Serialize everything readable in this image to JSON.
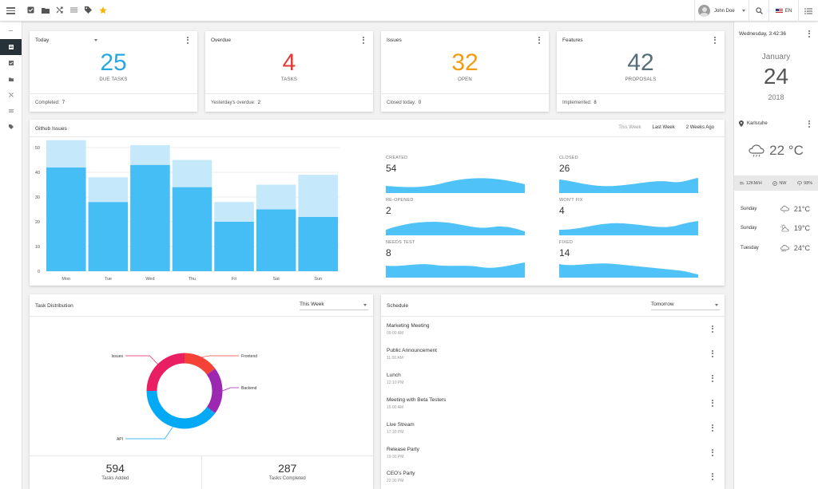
{
  "topbar": {
    "user_name": "John Doe",
    "lang": "EN"
  },
  "stats": [
    {
      "title": "Today",
      "value": "25",
      "label": "DUE TASKS",
      "color": "#29a8e0",
      "footer_label": "Completed:",
      "footer_value": "7",
      "has_dropdown": true
    },
    {
      "title": "Overdue",
      "value": "4",
      "label": "TASKS",
      "color": "#e53935",
      "footer_label": "Yesterday's overdue:",
      "footer_value": "2"
    },
    {
      "title": "Issues",
      "value": "32",
      "label": "OPEN",
      "color": "#f39c12",
      "footer_label": "Closed today:",
      "footer_value": "0"
    },
    {
      "title": "Features",
      "value": "42",
      "label": "PROPOSALS",
      "color": "#546e7a",
      "footer_label": "Implemented:",
      "footer_value": "8"
    }
  ],
  "github": {
    "title": "Github Issues",
    "tabs": [
      {
        "label": "This Week",
        "active": false
      },
      {
        "label": "Last Week",
        "active": true
      },
      {
        "label": "2 Weeks Ago",
        "active": true
      }
    ],
    "metrics": [
      {
        "label": "CREATED",
        "value": "54"
      },
      {
        "label": "CLOSED",
        "value": "26"
      },
      {
        "label": "RE-OPENED",
        "value": "2"
      },
      {
        "label": "WON'T FIX",
        "value": "4"
      },
      {
        "label": "NEEDS TEST",
        "value": "8"
      },
      {
        "label": "FIXED",
        "value": "14"
      }
    ]
  },
  "chart_data": {
    "type": "bar",
    "categories": [
      "Mon",
      "Tue",
      "Wed",
      "Thu",
      "Fri",
      "Sat",
      "Sun"
    ],
    "series": [
      {
        "values": [
          42,
          28,
          43,
          34,
          20,
          25,
          22
        ],
        "color": "#45bdf5"
      },
      {
        "values": [
          11,
          10,
          8,
          11,
          8,
          10,
          17
        ],
        "color": "#c5e9fb"
      }
    ],
    "stacked": true,
    "ylim": [
      0,
      50
    ],
    "yticks": [
      0,
      10,
      20,
      30,
      40,
      50
    ],
    "grid": true
  },
  "task_distribution": {
    "title": "Task Distribution",
    "period": "This Week",
    "segments": [
      {
        "label": "Frontend",
        "value": 15,
        "color": "#f44336"
      },
      {
        "label": "Backend",
        "value": 20,
        "color": "#9c27b0"
      },
      {
        "label": "API",
        "value": 40,
        "color": "#03a9f4"
      },
      {
        "label": "Issues",
        "value": 25,
        "color": "#e91e63"
      }
    ],
    "tasks_added_value": "594",
    "tasks_added_label": "Tasks Added",
    "tasks_completed_value": "287",
    "tasks_completed_label": "Tasks Completed"
  },
  "schedule": {
    "title": "Schedule",
    "period": "Tomorrow",
    "items": [
      {
        "title": "Marketing Meeting",
        "time": "09:00 AM"
      },
      {
        "title": "Public Announcement",
        "time": "11:00 AM"
      },
      {
        "title": "Lunch",
        "time": "12:10 PM"
      },
      {
        "title": "Meeting with Beta Testers",
        "time": "15:00 AM"
      },
      {
        "title": "Live Stream",
        "time": "17:30 PM"
      },
      {
        "title": "Release Party",
        "time": "19:30 PM"
      },
      {
        "title": "CEO's Party",
        "time": "22:30 PM"
      }
    ]
  },
  "right_panel": {
    "datetime": "Wednesday, 3:42:36",
    "month": "January",
    "day": "24",
    "year": "2018",
    "location": "Karlsruhe",
    "temperature": "22 °C",
    "wind_speed": "12KM/H",
    "wind_dir": "NW",
    "humidity": "98%",
    "forecast": [
      {
        "day": "Sunday",
        "temp": "21°C",
        "icon": "cloud-rain-icon"
      },
      {
        "day": "Sunday",
        "temp": "19°C",
        "icon": "sun-cloud-icon"
      },
      {
        "day": "Tuesday",
        "temp": "24°C",
        "icon": "cloud-wind-icon"
      }
    ]
  }
}
